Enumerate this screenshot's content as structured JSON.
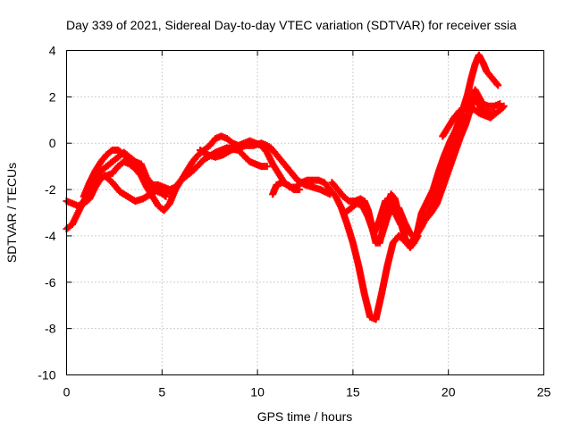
{
  "chart_data": {
    "type": "scatter",
    "title": "Day 339 of 2021, Sidereal Day-to-day VTEC variation (SDTVAR) for receiver ssia",
    "xlabel": "GPS time / hours",
    "ylabel": "SDTVAR / TECUs",
    "xlim": [
      0,
      25
    ],
    "ylim": [
      -10,
      4
    ],
    "xticks": [
      0,
      5,
      10,
      15,
      20,
      25
    ],
    "yticks": [
      -10,
      -8,
      -6,
      -4,
      -2,
      0,
      2,
      4
    ],
    "grid": true,
    "marker": "+",
    "series": [
      {
        "color": "#ff0000",
        "points": [
          [
            0.0,
            -3.7
          ],
          [
            0.3,
            -3.5
          ],
          [
            0.6,
            -3.0
          ],
          [
            0.9,
            -2.5
          ],
          [
            1.2,
            -2.0
          ],
          [
            1.5,
            -1.6
          ],
          [
            1.8,
            -1.2
          ],
          [
            2.1,
            -1.0
          ],
          [
            2.4,
            -0.8
          ],
          [
            2.7,
            -0.6
          ],
          [
            3.0,
            -0.4
          ],
          [
            3.3,
            -0.6
          ],
          [
            3.6,
            -0.8
          ],
          [
            3.9,
            -1.2
          ],
          [
            4.2,
            -1.5
          ],
          [
            4.5,
            -1.8
          ],
          [
            4.8,
            -1.8
          ],
          [
            5.1,
            -1.9
          ],
          [
            5.4,
            -2.0
          ],
          [
            5.7,
            -1.9
          ],
          [
            6.0,
            -1.6
          ],
          [
            6.3,
            -1.2
          ],
          [
            6.6,
            -0.8
          ],
          [
            6.9,
            -0.5
          ],
          [
            7.2,
            -0.3
          ],
          [
            7.5,
            -0.1
          ],
          [
            7.8,
            0.2
          ],
          [
            8.1,
            0.3
          ],
          [
            8.4,
            0.2
          ],
          [
            8.7,
            0.0
          ],
          [
            9.0,
            -0.1
          ],
          [
            9.3,
            0.0
          ],
          [
            9.6,
            0.1
          ],
          [
            9.9,
            0.0
          ],
          [
            10.2,
            -0.1
          ],
          [
            10.5,
            -0.4
          ],
          [
            10.8,
            -0.9
          ],
          [
            11.1,
            -1.3
          ],
          [
            11.4,
            -1.7
          ],
          [
            11.7,
            -1.9
          ],
          [
            12.0,
            -1.9
          ],
          [
            12.3,
            -1.7
          ],
          [
            12.6,
            -1.6
          ],
          [
            12.9,
            -1.6
          ],
          [
            13.2,
            -1.6
          ],
          [
            13.5,
            -1.7
          ],
          [
            13.8,
            -2.0
          ],
          [
            14.1,
            -2.3
          ],
          [
            14.4,
            -2.8
          ],
          [
            14.7,
            -3.5
          ],
          [
            15.0,
            -4.3
          ],
          [
            15.3,
            -5.3
          ],
          [
            15.6,
            -6.5
          ],
          [
            15.9,
            -7.5
          ],
          [
            16.2,
            -7.6
          ],
          [
            16.5,
            -6.5
          ],
          [
            16.8,
            -5.3
          ],
          [
            17.1,
            -4.3
          ],
          [
            17.4,
            -4.0
          ],
          [
            17.7,
            -4.2
          ],
          [
            18.0,
            -4.3
          ],
          [
            18.3,
            -4.0
          ],
          [
            18.6,
            -3.6
          ],
          [
            18.9,
            -3.1
          ],
          [
            19.2,
            -2.6
          ],
          [
            19.5,
            -2.0
          ],
          [
            19.8,
            -1.1
          ],
          [
            20.1,
            -0.2
          ],
          [
            20.4,
            0.5
          ],
          [
            20.7,
            1.0
          ],
          [
            21.0,
            1.2
          ],
          [
            21.3,
            1.5
          ],
          [
            21.6,
            1.3
          ],
          [
            21.9,
            1.2
          ],
          [
            22.2,
            1.1
          ],
          [
            22.5,
            1.3
          ],
          [
            22.8,
            1.5
          ],
          [
            22.9,
            1.6
          ],
          [
            0.0,
            -2.5
          ],
          [
            0.3,
            -2.6
          ],
          [
            0.6,
            -2.7
          ],
          [
            0.9,
            -2.6
          ],
          [
            1.2,
            -2.4
          ],
          [
            1.5,
            -1.9
          ],
          [
            1.8,
            -1.5
          ],
          [
            2.1,
            -1.4
          ],
          [
            2.4,
            -1.3
          ],
          [
            2.7,
            -1.0
          ],
          [
            3.0,
            -0.8
          ],
          [
            3.3,
            -0.9
          ],
          [
            3.6,
            -1.1
          ],
          [
            3.9,
            -1.4
          ],
          [
            4.2,
            -1.9
          ],
          [
            4.5,
            -2.3
          ],
          [
            4.8,
            -2.7
          ],
          [
            5.1,
            -2.9
          ],
          [
            5.4,
            -2.6
          ],
          [
            5.7,
            -2.0
          ],
          [
            6.0,
            -1.6
          ],
          [
            6.6,
            -1.2
          ],
          [
            7.2,
            -0.7
          ],
          [
            7.8,
            -0.4
          ],
          [
            8.4,
            -0.2
          ],
          [
            9.0,
            -0.3
          ],
          [
            9.6,
            -0.8
          ],
          [
            10.2,
            -1.0
          ],
          [
            10.5,
            -1.0
          ],
          [
            0.9,
            -2.3
          ],
          [
            1.2,
            -1.7
          ],
          [
            1.5,
            -1.2
          ],
          [
            1.8,
            -0.8
          ],
          [
            2.1,
            -0.5
          ],
          [
            2.4,
            -0.3
          ],
          [
            2.7,
            -0.3
          ],
          [
            3.0,
            -0.5
          ],
          [
            3.3,
            -0.7
          ],
          [
            3.6,
            -0.8
          ],
          [
            3.9,
            -0.9
          ],
          [
            4.2,
            -1.5
          ],
          [
            4.5,
            -1.9
          ],
          [
            4.8,
            -2.1
          ],
          [
            5.1,
            -2.2
          ],
          [
            5.4,
            -2.1
          ],
          [
            5.7,
            -2.0
          ],
          [
            2.0,
            -1.4
          ],
          [
            2.4,
            -1.7
          ],
          [
            2.8,
            -2.1
          ],
          [
            3.2,
            -2.3
          ],
          [
            3.6,
            -2.5
          ],
          [
            4.0,
            -2.4
          ],
          [
            4.4,
            -2.2
          ],
          [
            4.8,
            -2.0
          ],
          [
            5.2,
            -2.3
          ],
          [
            7.0,
            -0.3
          ],
          [
            7.4,
            -0.5
          ],
          [
            7.8,
            -0.6
          ],
          [
            8.2,
            -0.5
          ],
          [
            8.6,
            -0.3
          ],
          [
            9.0,
            -0.2
          ],
          [
            9.4,
            -0.1
          ],
          [
            9.8,
            -0.1
          ],
          [
            10.2,
            0.0
          ],
          [
            10.5,
            -0.1
          ],
          [
            10.7,
            -0.2
          ],
          [
            11.0,
            -0.5
          ],
          [
            11.3,
            -0.8
          ],
          [
            11.7,
            -1.2
          ],
          [
            12.1,
            -1.6
          ],
          [
            12.5,
            -1.8
          ],
          [
            12.9,
            -1.9
          ],
          [
            13.3,
            -2.0
          ],
          [
            13.8,
            -2.2
          ],
          [
            10.8,
            -2.2
          ],
          [
            11.0,
            -1.8
          ],
          [
            11.3,
            -1.7
          ],
          [
            11.6,
            -1.8
          ],
          [
            11.9,
            -2.0
          ],
          [
            12.2,
            -2.0
          ],
          [
            13.9,
            -1.7
          ],
          [
            14.2,
            -2.0
          ],
          [
            14.5,
            -2.3
          ],
          [
            14.8,
            -2.5
          ],
          [
            15.1,
            -2.5
          ],
          [
            15.4,
            -2.4
          ],
          [
            15.6,
            -2.5
          ],
          [
            15.8,
            -2.9
          ],
          [
            16.0,
            -3.6
          ],
          [
            16.2,
            -4.3
          ],
          [
            16.4,
            -4.3
          ],
          [
            16.6,
            -3.6
          ],
          [
            16.8,
            -2.8
          ],
          [
            17.0,
            -2.2
          ],
          [
            17.2,
            -2.4
          ],
          [
            17.4,
            -3.1
          ],
          [
            17.6,
            -3.7
          ],
          [
            17.8,
            -4.3
          ],
          [
            18.0,
            -4.5
          ],
          [
            18.2,
            -4.3
          ],
          [
            18.4,
            -4.0
          ],
          [
            14.6,
            -3.0
          ],
          [
            14.9,
            -2.8
          ],
          [
            15.2,
            -2.6
          ],
          [
            15.5,
            -2.7
          ],
          [
            15.8,
            -3.2
          ],
          [
            16.1,
            -3.9
          ],
          [
            16.4,
            -3.3
          ],
          [
            16.7,
            -2.5
          ],
          [
            16.9,
            -2.4
          ],
          [
            17.2,
            -3.0
          ],
          [
            17.5,
            -3.5
          ],
          [
            16.5,
            -4.0
          ],
          [
            16.8,
            -3.2
          ],
          [
            17.1,
            -2.7
          ],
          [
            17.4,
            -2.8
          ],
          [
            17.7,
            -3.4
          ],
          [
            18.0,
            -3.9
          ],
          [
            18.3,
            -4.1
          ],
          [
            18.6,
            -3.0
          ],
          [
            18.9,
            -2.5
          ],
          [
            19.2,
            -2.0
          ],
          [
            19.5,
            -1.2
          ],
          [
            19.8,
            -0.5
          ],
          [
            20.1,
            0.1
          ],
          [
            20.4,
            0.6
          ],
          [
            20.7,
            1.3
          ],
          [
            21.0,
            2.1
          ],
          [
            21.2,
            2.8
          ],
          [
            21.4,
            3.4
          ],
          [
            21.6,
            3.8
          ],
          [
            21.8,
            3.5
          ],
          [
            22.0,
            3.1
          ],
          [
            22.3,
            2.8
          ],
          [
            22.6,
            2.5
          ],
          [
            18.8,
            -3.3
          ],
          [
            19.1,
            -3.0
          ],
          [
            19.4,
            -2.6
          ],
          [
            19.7,
            -1.9
          ],
          [
            20.0,
            -1.2
          ],
          [
            20.3,
            -0.5
          ],
          [
            20.6,
            0.2
          ],
          [
            20.9,
            0.8
          ],
          [
            21.2,
            1.6
          ],
          [
            21.4,
            2.3
          ],
          [
            21.6,
            2.0
          ],
          [
            21.8,
            1.7
          ],
          [
            22.1,
            1.6
          ],
          [
            22.4,
            1.6
          ],
          [
            22.7,
            1.7
          ],
          [
            19.7,
            0.3
          ],
          [
            20.0,
            0.7
          ],
          [
            20.3,
            1.1
          ],
          [
            20.6,
            1.4
          ],
          [
            20.9,
            1.5
          ],
          [
            21.2,
            1.9
          ],
          [
            21.5,
            1.8
          ],
          [
            21.8,
            1.4
          ],
          [
            22.1,
            1.3
          ],
          [
            22.4,
            1.3
          ]
        ]
      }
    ]
  }
}
